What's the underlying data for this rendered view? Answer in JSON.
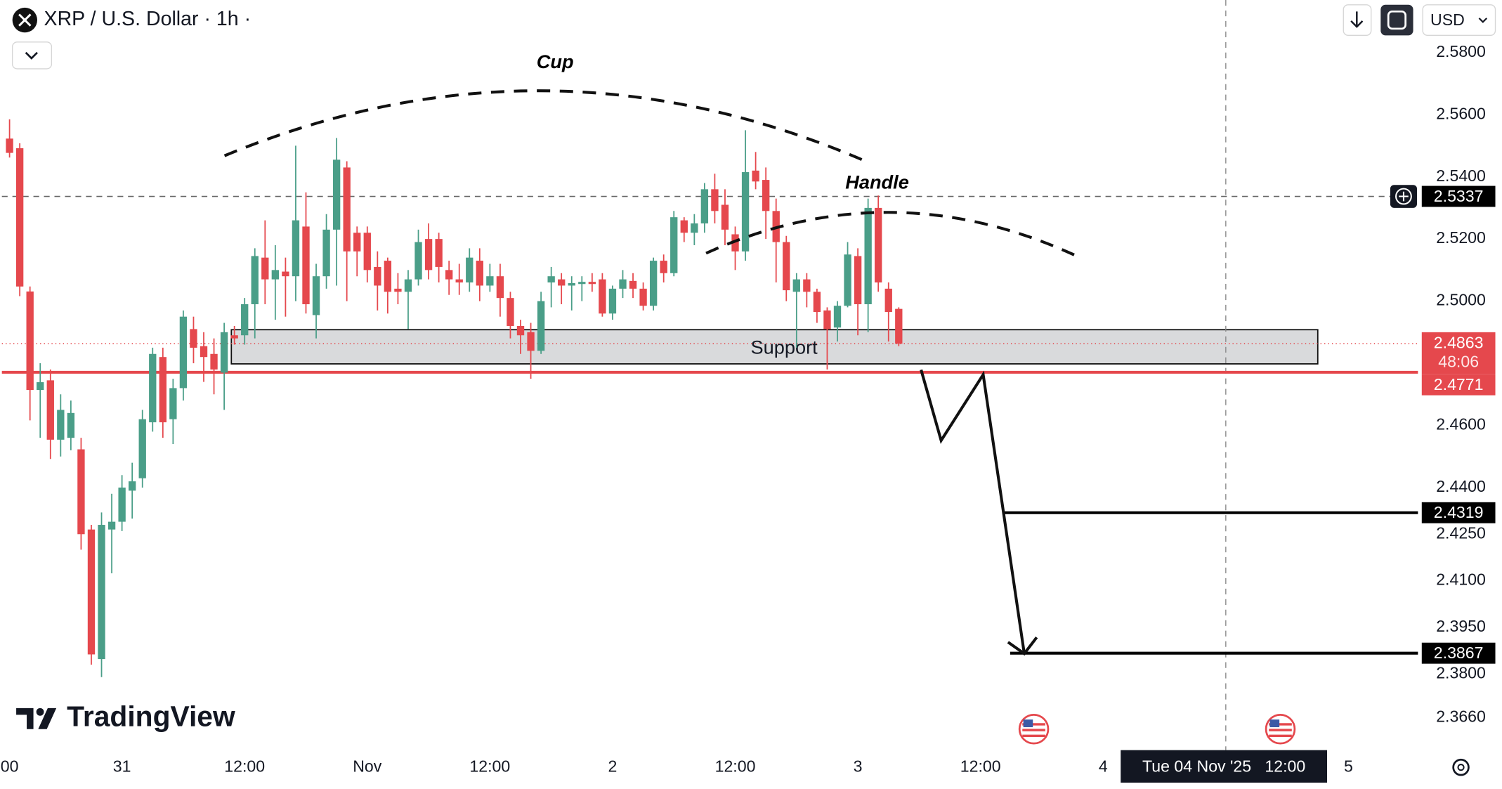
{
  "header": {
    "symbol": "XRP / U.S. Dollar · 1h ·",
    "currency": "USD"
  },
  "chart_data": {
    "type": "candlestick",
    "categories": [
      null,
      null,
      null,
      null,
      null,
      null,
      null,
      null,
      null,
      null,
      null,
      null,
      null,
      null,
      null,
      null,
      null,
      null,
      null,
      null,
      null,
      null,
      null,
      null,
      null,
      null,
      null,
      null,
      null,
      null,
      null,
      null,
      null,
      null,
      null,
      null,
      null,
      null,
      null,
      null,
      null,
      null,
      null,
      null,
      null,
      null,
      null,
      null,
      null,
      null,
      null,
      null,
      null,
      null,
      null,
      null,
      null,
      null,
      null,
      null,
      null,
      null,
      null,
      null,
      null,
      null,
      null,
      null,
      null,
      null,
      null,
      null,
      null,
      null,
      null,
      null,
      null,
      null,
      null,
      null,
      null,
      null,
      null,
      null,
      null,
      null,
      null,
      null
    ],
    "open": [
      2.5523,
      2.5492,
      2.5031,
      2.4714,
      2.4745,
      2.4554,
      2.456,
      2.4523,
      2.4265,
      2.3848,
      2.4265,
      2.429,
      2.439,
      2.443,
      2.461,
      2.482,
      2.462,
      2.472,
      2.491,
      2.4855,
      2.483,
      2.477,
      2.489,
      2.489,
      2.499,
      2.514,
      2.507,
      2.5095,
      2.508,
      2.524,
      2.4955,
      2.508,
      2.523,
      2.543,
      2.522,
      2.522,
      2.511,
      2.513,
      2.504,
      2.503,
      2.507,
      2.52,
      2.52,
      2.51,
      2.507,
      2.506,
      2.513,
      2.505,
      2.508,
      2.501,
      2.492,
      2.49,
      2.484,
      2.506,
      2.507,
      2.505,
      2.5055,
      2.5062,
      2.507,
      2.496,
      2.504,
      2.5065,
      2.504,
      2.4985,
      2.513,
      2.509,
      2.526,
      2.522,
      2.525,
      2.536,
      2.531,
      2.5215,
      2.516,
      2.542,
      2.539,
      2.529,
      2.519,
      2.503,
      2.507,
      2.503,
      2.497,
      2.4915,
      2.4985,
      2.5145,
      2.499,
      2.53,
      2.504,
      2.4975
    ],
    "high": [
      2.5585,
      2.5508,
      2.5047,
      2.48,
      2.478,
      2.47,
      2.468,
      2.456,
      2.428,
      2.432,
      2.438,
      2.444,
      2.448,
      2.465,
      2.485,
      2.485,
      2.475,
      2.497,
      2.495,
      2.49,
      2.488,
      2.493,
      2.492,
      2.501,
      2.517,
      2.526,
      2.518,
      2.514,
      2.55,
      2.535,
      2.512,
      2.528,
      2.5525,
      2.545,
      2.524,
      2.524,
      2.516,
      2.514,
      2.509,
      2.51,
      2.523,
      2.525,
      2.522,
      2.513,
      2.512,
      2.517,
      2.517,
      2.512,
      2.512,
      2.503,
      2.494,
      2.493,
      2.503,
      2.511,
      2.509,
      2.508,
      2.508,
      2.509,
      2.509,
      2.505,
      2.51,
      2.509,
      2.506,
      2.514,
      2.515,
      2.529,
      2.527,
      2.528,
      2.538,
      2.541,
      2.536,
      2.524,
      2.555,
      2.548,
      2.543,
      2.533,
      2.521,
      2.509,
      2.509,
      2.504,
      2.498,
      2.5,
      2.519,
      2.517,
      2.533,
      2.534,
      2.506,
      2.498
    ],
    "low": [
      2.5462,
      2.5016,
      2.4616,
      2.456,
      2.4492,
      2.45,
      2.452,
      2.42,
      2.383,
      2.379,
      2.4124,
      2.426,
      2.43,
      2.44,
      2.458,
      2.456,
      2.454,
      2.468,
      2.48,
      2.474,
      2.47,
      2.465,
      2.486,
      2.486,
      2.488,
      2.499,
      2.494,
      2.495,
      2.5,
      2.496,
      2.488,
      2.504,
      2.505,
      2.5,
      2.508,
      2.506,
      2.497,
      2.496,
      2.499,
      2.491,
      2.505,
      2.507,
      2.506,
      2.502,
      2.502,
      2.503,
      2.5,
      2.503,
      2.495,
      2.488,
      2.483,
      2.475,
      2.483,
      2.498,
      2.499,
      2.497,
      2.5,
      2.503,
      2.495,
      2.494,
      2.501,
      2.501,
      2.497,
      2.497,
      2.506,
      2.508,
      2.519,
      2.518,
      2.522,
      2.525,
      2.518,
      2.51,
      2.513,
      2.536,
      2.52,
      2.506,
      2.5,
      2.485,
      2.498,
      2.493,
      2.478,
      2.487,
      2.498,
      2.489,
      2.49,
      2.503,
      2.487,
      2.4855
    ],
    "close": [
      2.5477,
      2.5047,
      2.4714,
      2.4739,
      2.4554,
      2.465,
      2.464,
      2.425,
      2.3863,
      2.428,
      2.429,
      2.44,
      2.442,
      2.462,
      2.483,
      2.461,
      2.472,
      2.495,
      2.485,
      2.482,
      2.478,
      2.49,
      2.488,
      2.499,
      2.5145,
      2.507,
      2.51,
      2.508,
      2.526,
      2.499,
      2.508,
      2.523,
      2.5455,
      2.516,
      2.516,
      2.51,
      2.505,
      2.503,
      2.503,
      2.507,
      2.519,
      2.51,
      2.511,
      2.507,
      2.506,
      2.514,
      2.505,
      2.508,
      2.501,
      2.492,
      2.489,
      2.484,
      2.5,
      2.508,
      2.505,
      2.5058,
      2.5062,
      2.5055,
      2.496,
      2.504,
      2.507,
      2.504,
      2.4985,
      2.513,
      2.509,
      2.527,
      2.522,
      2.525,
      2.536,
      2.529,
      2.523,
      2.516,
      2.5415,
      2.5385,
      2.529,
      2.519,
      2.5035,
      2.507,
      2.503,
      2.4965,
      2.491,
      2.4985,
      2.515,
      2.499,
      2.53,
      2.506,
      2.4965,
      2.4863
    ],
    "up_color": "#4a9e88",
    "down_color": "#e5484d",
    "xlim": [
      -0.75,
      137.8
    ],
    "xticks": [
      {
        "value": 0,
        "label": "00"
      },
      {
        "value": 11,
        "label": "31"
      },
      {
        "value": 23,
        "label": "12:00"
      },
      {
        "value": 35,
        "label": "Nov"
      },
      {
        "value": 47,
        "label": "12:00"
      },
      {
        "value": 59,
        "label": "2"
      },
      {
        "value": 71,
        "label": "12:00"
      },
      {
        "value": 83,
        "label": "3"
      },
      {
        "value": 95,
        "label": "12:00"
      },
      {
        "value": 107,
        "label": "4"
      },
      {
        "value": 131,
        "label": "5"
      }
    ],
    "ylim": [
      2.3555,
      2.5969
    ],
    "yticks": [
      {
        "value": 2.58,
        "label": "2.5800"
      },
      {
        "value": 2.56,
        "label": "2.5600"
      },
      {
        "value": 2.54,
        "label": "2.5400"
      },
      {
        "value": 2.52,
        "label": "2.5200"
      },
      {
        "value": 2.5,
        "label": "2.5000"
      },
      {
        "value": 2.46,
        "label": "2.4600"
      },
      {
        "value": 2.44,
        "label": "2.4400"
      },
      {
        "value": 2.425,
        "label": "2.4250"
      },
      {
        "value": 2.41,
        "label": "2.4100"
      },
      {
        "value": 2.395,
        "label": "2.3950"
      },
      {
        "value": 2.38,
        "label": "2.3800"
      },
      {
        "value": 2.366,
        "label": "2.3660"
      }
    ],
    "annotations": {
      "cup": "Cup",
      "handle": "Handle",
      "support": {
        "label": "Support",
        "from": 21.7,
        "to": 128,
        "low": 2.4798,
        "high": 2.4908
      }
    },
    "lines": [
      {
        "value": 2.5337,
        "color": "#000000",
        "style": "dashed",
        "from": -0.75
      },
      {
        "value": 2.4771,
        "color": "#e5484d",
        "style": "solid",
        "from": -0.75
      },
      {
        "value": 2.4319,
        "color": "#000000",
        "style": "solid",
        "from": 97.3
      },
      {
        "value": 2.3867,
        "color": "#000000",
        "style": "solid",
        "from": 97.9
      }
    ],
    "last_price": {
      "value": 2.4863,
      "countdown": "48:06",
      "color": "#e5484d"
    },
    "crosshair": {
      "value": 119,
      "label": "Tue 04 Nov '25   12:00"
    },
    "watermark": "TradingView"
  }
}
